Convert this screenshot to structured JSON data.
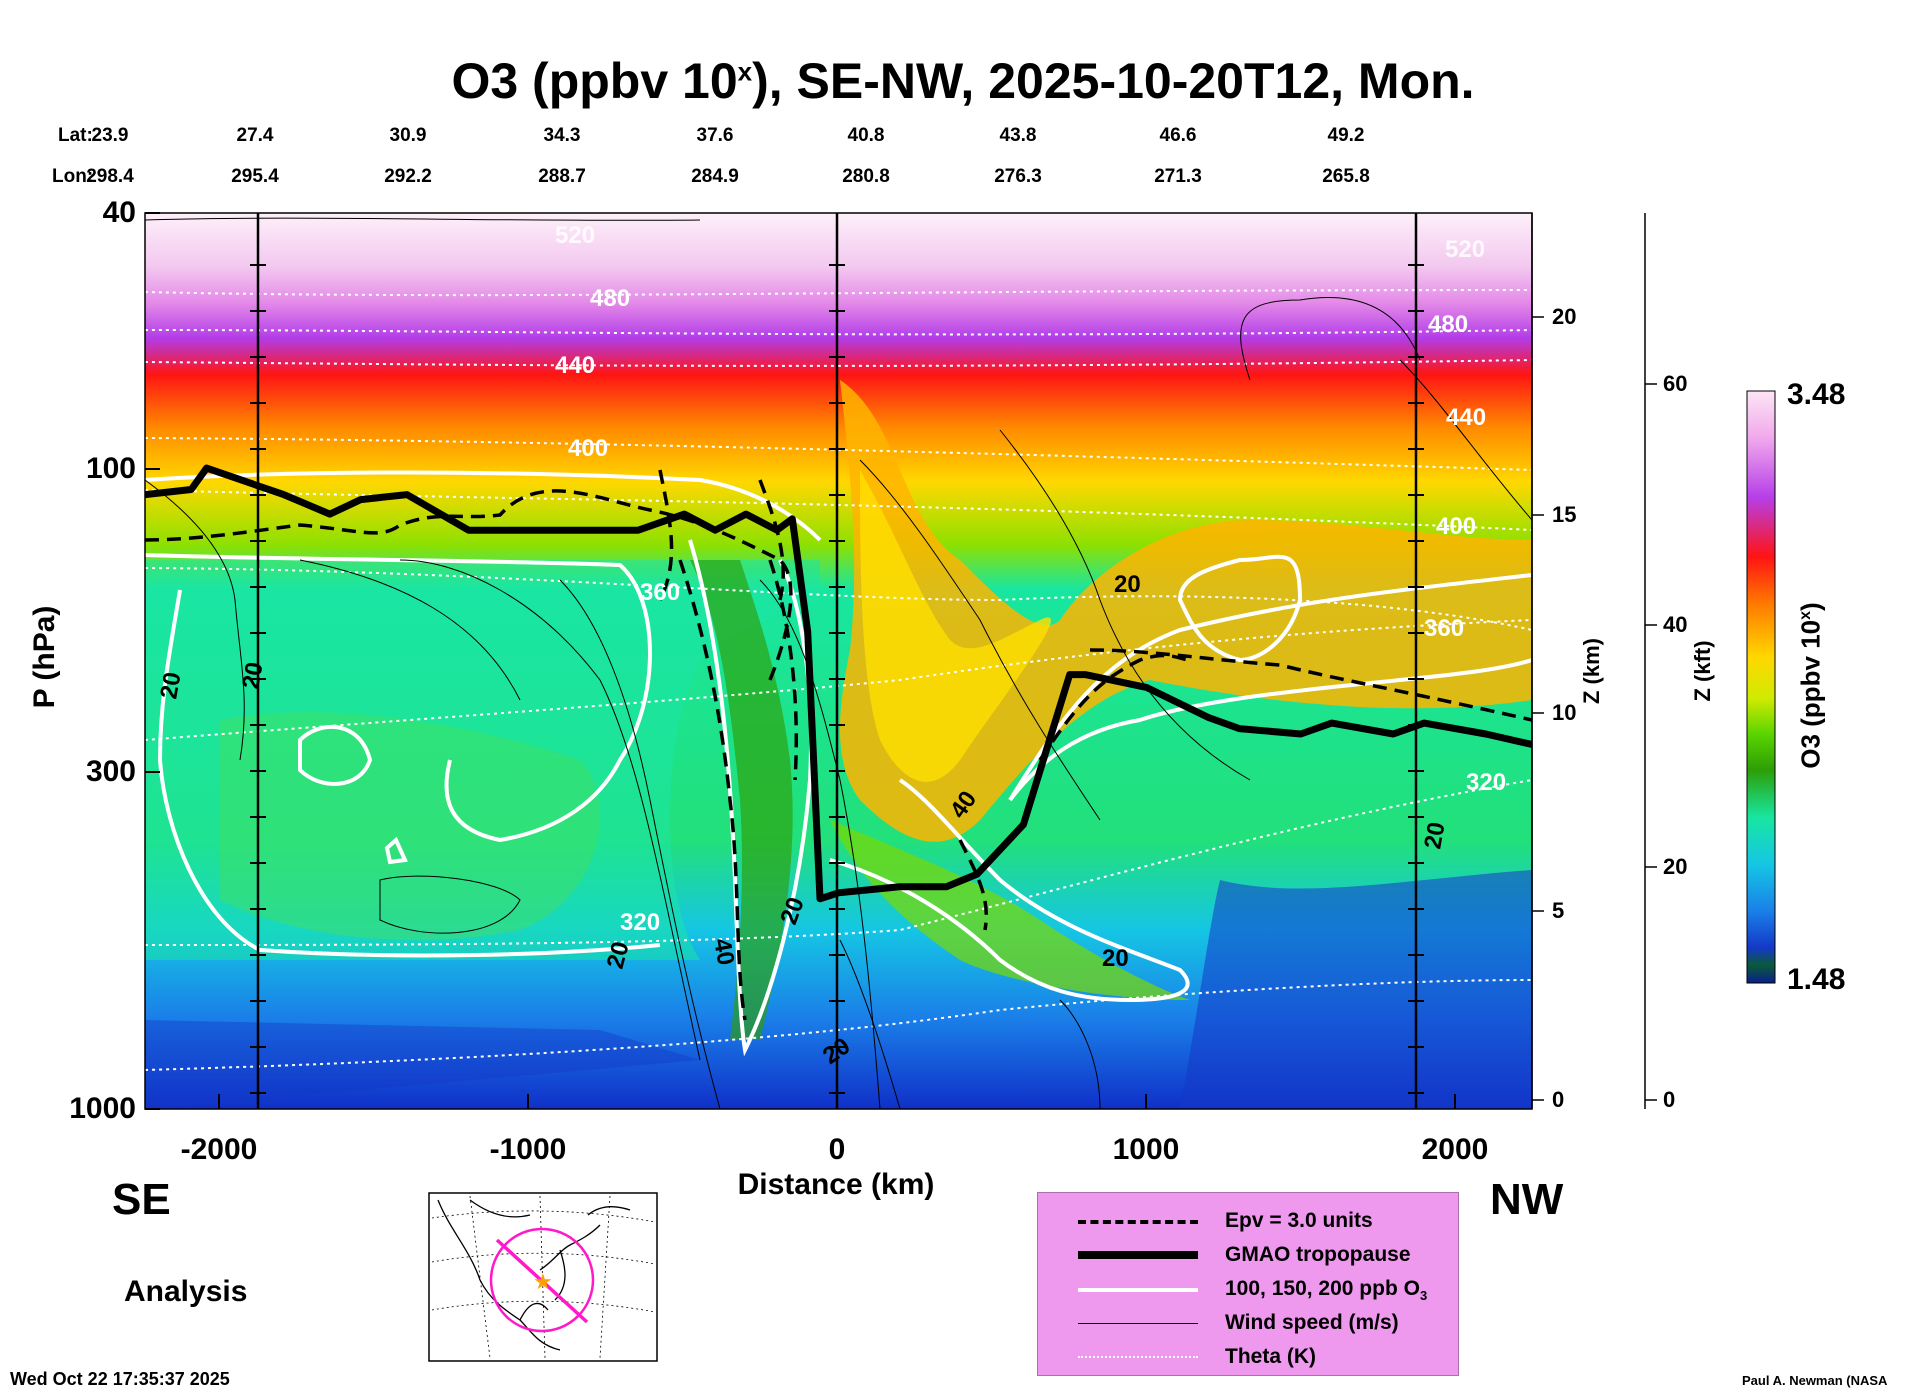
{
  "title": {
    "prefix": "O3 (ppbv 10",
    "exponent": "x",
    "suffix": "), SE-NW, 2025-10-20T12, Mon."
  },
  "coords": {
    "lat_label": "Lat:",
    "lon_label": "Lon:",
    "lat": [
      "23.9",
      "27.4",
      "30.9",
      "34.3",
      "37.6",
      "40.8",
      "43.8",
      "46.6",
      "49.2"
    ],
    "lon": [
      "298.4",
      "295.4",
      "292.2",
      "288.7",
      "284.9",
      "280.8",
      "276.3",
      "271.3",
      "265.8"
    ]
  },
  "labels": {
    "se": "SE",
    "nw": "NW",
    "analysis": "Analysis",
    "timestamp": "Wed Oct 22 17:35:37 2025",
    "credit": "Paul A. Newman (NASA"
  },
  "colors": {
    "tropopause": "#000000",
    "o3_contour": "#ffffff",
    "theta": "#ffffff",
    "wind": "#000000",
    "legend_bg": "#ee98ee"
  },
  "legend": [
    {
      "style": "dashed",
      "text": "Epv = 3.0 units"
    },
    {
      "style": "thick",
      "text": "GMAO tropopause"
    },
    {
      "style": "white",
      "text": "100, 150, 200 ppb O",
      "sub": "3"
    },
    {
      "style": "thin",
      "text": "Wind speed (m/s)"
    },
    {
      "style": "dotted",
      "text": "Theta (K)"
    }
  ],
  "colorbar": {
    "label": "O3 (ppbv 10",
    "exponent": "x",
    "label_end": ")",
    "max": "3.48",
    "min": "1.48",
    "stops": [
      "#fde6f6",
      "#f0a8ec",
      "#b63ee8",
      "#ff1414",
      "#ff7a00",
      "#ffd800",
      "#cfea00",
      "#5ad400",
      "#2c9e06",
      "#18e6a0",
      "#15c6e4",
      "#1a7ee8",
      "#1438c8",
      "#0a1e8c"
    ]
  },
  "chart_data": {
    "type": "heatmap",
    "title": "O3 (ppbv 10^x), SE-NW, 2025-10-20T12, Mon.",
    "xlabel": "Distance (km)",
    "ylabel": "P (hPa)",
    "y2label": "Z (km)",
    "y3label": "Z (kft)",
    "xlim": [
      -2250,
      2250
    ],
    "ylim_hpa": [
      1000,
      40
    ],
    "yscale": "log",
    "x_ticks": [
      "-2000",
      "-1000",
      "0",
      "1000",
      "2000"
    ],
    "y_ticks": [
      "40",
      "100",
      "300",
      "1000"
    ],
    "z_km_ticks": [
      "0",
      "5",
      "10",
      "15",
      "20"
    ],
    "z_kft_ticks": [
      "0",
      "20",
      "40",
      "60"
    ],
    "colorbar_range": [
      1.48,
      3.48
    ],
    "tropopause": {
      "x": [
        -2250,
        -2100,
        -2050,
        -1800,
        -1650,
        -1550,
        -1400,
        -1200,
        -1000,
        -800,
        -650,
        -500,
        -400,
        -300,
        -200,
        -150,
        -100,
        -60,
        0,
        200,
        350,
        450,
        600,
        750,
        800,
        1000,
        1200,
        1300,
        1500,
        1600,
        1800,
        1900,
        2100,
        2250
      ],
      "p": [
        110,
        108,
        100,
        110,
        118,
        112,
        110,
        125,
        125,
        125,
        125,
        118,
        125,
        118,
        125,
        120,
        180,
        470,
        460,
        450,
        450,
        430,
        360,
        210,
        210,
        220,
        245,
        255,
        260,
        250,
        260,
        250,
        260,
        270
      ]
    },
    "theta_labels": [
      "520",
      "480",
      "440",
      "400",
      "360",
      "320"
    ],
    "o3_contour_labels": [
      "20",
      "40"
    ],
    "wind_labels": [
      "20",
      "40"
    ]
  }
}
